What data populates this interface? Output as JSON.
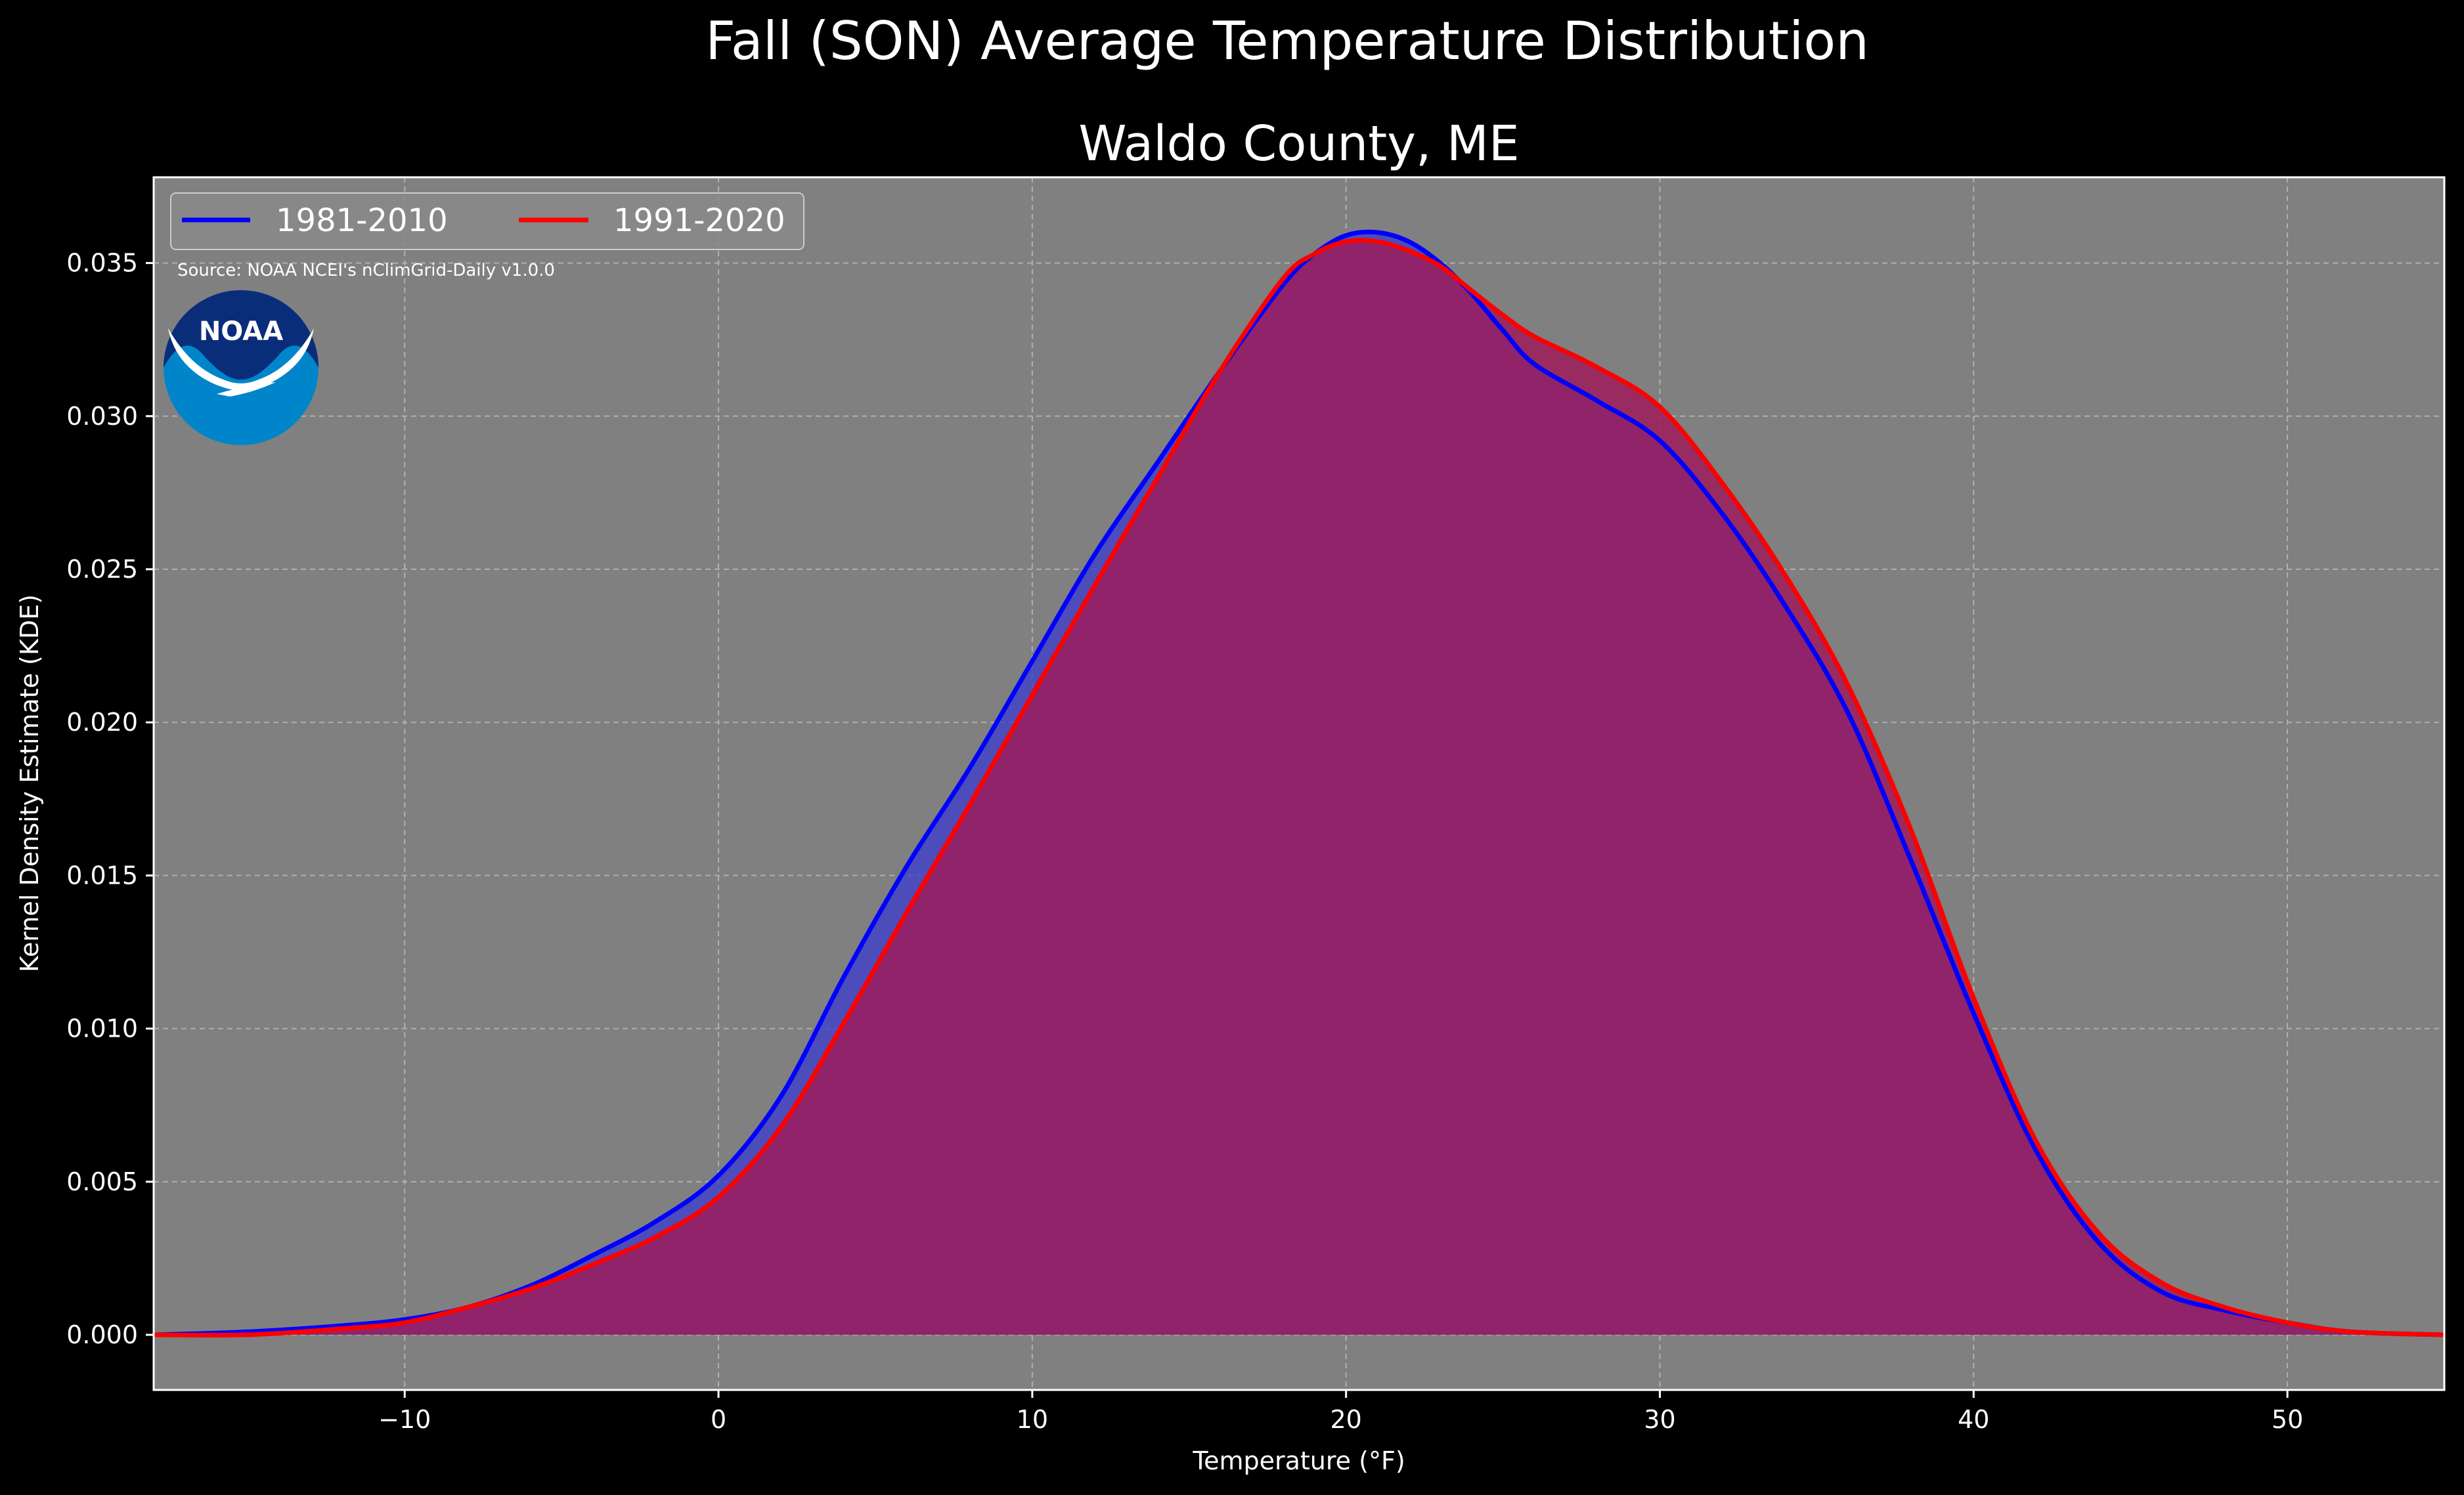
{
  "chart_data": {
    "type": "area",
    "title": "Fall (SON) Average Temperature Distribution",
    "subtitle": "Waldo County, ME",
    "xlabel": "Temperature ($^\\circ$F)",
    "xlabel_display": "Temperature (°F)",
    "ylabel": "Kernel Density Estimate (KDE)",
    "xlim": [
      -18,
      55
    ],
    "ylim": [
      -0.0018,
      0.0378
    ],
    "xticks": [
      -10,
      0,
      10,
      20,
      30,
      40,
      50
    ],
    "xtick_labels": [
      "−10",
      "0",
      "10",
      "20",
      "30",
      "40",
      "50"
    ],
    "yticks": [
      0.0,
      0.005,
      0.01,
      0.015,
      0.02,
      0.025,
      0.03,
      0.035
    ],
    "ytick_labels": [
      "0.000",
      "0.005",
      "0.010",
      "0.015",
      "0.020",
      "0.025",
      "0.030",
      "0.035"
    ],
    "grid": true,
    "legend_position": "top-left",
    "annotation": "Source: NOAA NCEI's nClimGrid-Daily v1.0.0",
    "logo": {
      "text": "NOAA",
      "icon": "noaa-logo"
    },
    "colors": {
      "background": "#000000",
      "plot_bg": "#808080",
      "series1_line": "#0000ff",
      "series1_fill": "#3b3bcf",
      "series2_line": "#ff0000",
      "series2_fill": "#9e1c5c"
    },
    "series": [
      {
        "name": "1981-2010",
        "color": "#0000ff",
        "x": [
          -18,
          -15,
          -12,
          -10,
          -8,
          -6,
          -4,
          -2,
          0,
          2,
          4,
          6,
          8,
          10,
          12,
          14,
          16,
          18,
          19,
          20,
          21,
          22,
          23,
          24,
          25,
          26,
          28,
          30,
          32,
          34,
          36,
          38,
          40,
          42,
          44,
          46,
          48,
          50,
          52,
          55
        ],
        "y": [
          0.0,
          0.0001,
          0.0003,
          0.0005,
          0.0009,
          0.0016,
          0.0026,
          0.0037,
          0.0052,
          0.0078,
          0.0117,
          0.0153,
          0.0185,
          0.022,
          0.0255,
          0.0285,
          0.0315,
          0.0343,
          0.0353,
          0.0359,
          0.036,
          0.0357,
          0.035,
          0.034,
          0.0328,
          0.0317,
          0.0305,
          0.0292,
          0.0268,
          0.0238,
          0.0203,
          0.0155,
          0.0105,
          0.006,
          0.003,
          0.0014,
          0.0008,
          0.0004,
          0.0001,
          0.0
        ]
      },
      {
        "name": "1991-2020",
        "color": "#ff0000",
        "x": [
          -18,
          -15,
          -12,
          -10,
          -8,
          -6,
          -4,
          -2,
          0,
          2,
          4,
          6,
          8,
          10,
          12,
          14,
          16,
          18,
          19,
          20,
          21,
          22,
          23,
          24,
          25,
          26,
          28,
          30,
          32,
          34,
          36,
          38,
          40,
          42,
          44,
          46,
          48,
          50,
          52,
          55
        ],
        "y": [
          0.0,
          0.0,
          0.0002,
          0.0004,
          0.0009,
          0.0015,
          0.0023,
          0.0032,
          0.0045,
          0.0068,
          0.0102,
          0.0138,
          0.0173,
          0.0209,
          0.0245,
          0.028,
          0.0315,
          0.0345,
          0.0353,
          0.0357,
          0.0357,
          0.0354,
          0.0349,
          0.0341,
          0.0333,
          0.0326,
          0.0316,
          0.0303,
          0.0278,
          0.0248,
          0.0212,
          0.0165,
          0.011,
          0.0063,
          0.0033,
          0.0017,
          0.0009,
          0.0004,
          0.0001,
          0.0
        ]
      }
    ]
  }
}
